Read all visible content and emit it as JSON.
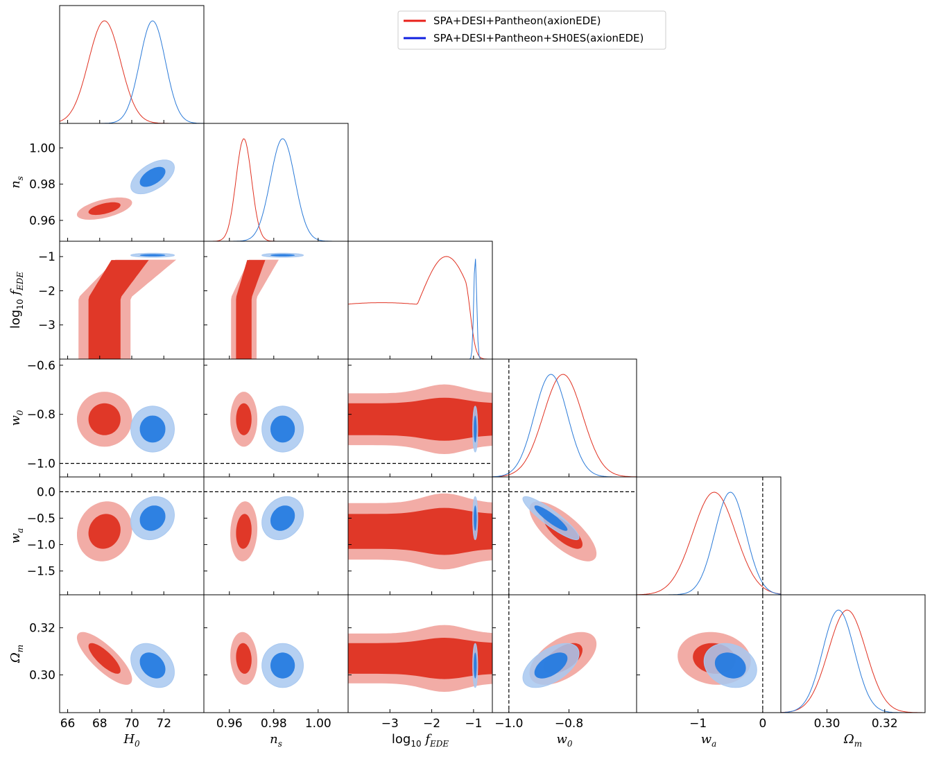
{
  "chart_data": {
    "type": "triangle-corner-plot",
    "parameters": [
      {
        "key": "H0",
        "label": "H",
        "sub": "0",
        "range": [
          65.5,
          74.5
        ],
        "ticks": [
          66,
          68,
          70,
          72
        ]
      },
      {
        "key": "ns",
        "label": "n",
        "sub": "s",
        "range": [
          0.9485,
          1.0135
        ],
        "ticks": [
          0.96,
          0.98,
          1.0
        ],
        "tick_labels": [
          "0.96",
          "0.98",
          "1.00"
        ]
      },
      {
        "key": "log10fEDE",
        "label": "log",
        "sub": "10",
        "label_tail": "f",
        "tail_sub": "EDE",
        "range": [
          -4.0,
          -0.55
        ],
        "ticks": [
          -3,
          -2,
          -1
        ],
        "tick_labels": [
          "−3",
          "−2",
          "−1"
        ]
      },
      {
        "key": "w0",
        "label": "w",
        "sub": "0",
        "range": [
          -1.055,
          -0.575
        ],
        "ticks": [
          -1.0,
          -0.8
        ],
        "tick_labels": [
          "−1.0",
          "−0.8"
        ],
        "y_ticks": [
          -1.0,
          -0.8,
          -0.6
        ],
        "y_tick_labels": [
          "−1.0",
          "−0.8",
          "−0.6"
        ]
      },
      {
        "key": "wa",
        "label": "w",
        "sub": "a",
        "range": [
          -1.95,
          0.28
        ],
        "ticks": [
          -1,
          0
        ],
        "tick_labels": [
          "−1",
          "0"
        ],
        "y_ticks": [
          -1.5,
          -1.0,
          -0.5,
          0.0
        ],
        "y_tick_labels": [
          "−1.5",
          "−1.0",
          "−0.5",
          "0.0"
        ]
      },
      {
        "key": "Om",
        "label": "Ω",
        "sub": "m",
        "range": [
          0.284,
          0.334
        ],
        "ticks": [
          0.3,
          0.32
        ],
        "tick_labels": [
          "0.30",
          "0.32"
        ]
      }
    ],
    "series": [
      {
        "name": "SPA+DESI+Pantheon(axionEDE)",
        "color": "#e03020",
        "fill_inner": "#e03828",
        "fill_outer": "#f2aca6",
        "legend_color": "#e8201a",
        "means": {
          "H0": 68.3,
          "ns": 0.9665,
          "log10fEDE": -1.65,
          "w0": -0.82,
          "wa": -0.75,
          "Om": 0.307
        },
        "sigmas": {
          "H0": 1.0,
          "ns": 0.0035,
          "log10fEDE": 0.7,
          "w0": 0.065,
          "wa": 0.33,
          "Om": 0.0065
        }
      },
      {
        "name": "SPA+DESI+Pantheon+SH0ES(axionEDE)",
        "color": "#2a7ad8",
        "fill_inner": "#1f78e0",
        "fill_outer": "#a8c8f0",
        "legend_color": "#1020e0",
        "means": {
          "H0": 71.3,
          "ns": 0.984,
          "log10fEDE": -0.96,
          "w0": -0.86,
          "wa": -0.5,
          "Om": 0.304
        },
        "sigmas": {
          "H0": 0.8,
          "ns": 0.0055,
          "log10fEDE": 0.035,
          "w0": 0.055,
          "wa": 0.24,
          "Om": 0.0055
        }
      }
    ],
    "reference_lines": {
      "w0": -1.0,
      "wa": 0.0
    }
  }
}
